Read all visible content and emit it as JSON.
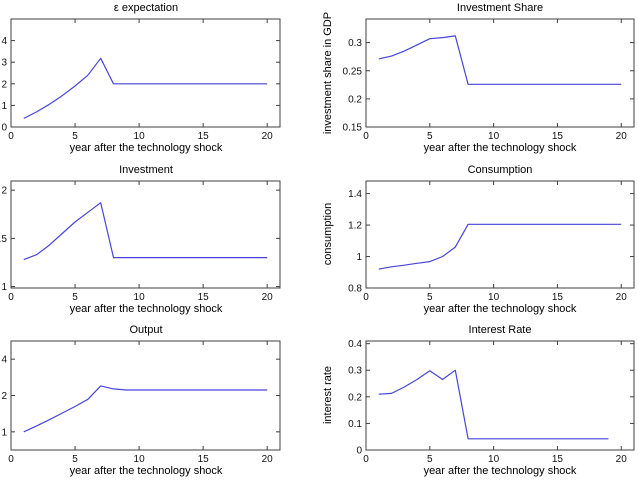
{
  "figure": {
    "background": "#ffffff",
    "line_color": "#4646d7",
    "flat_tail_color": "#b4b4ee",
    "axis_color": "#3f3f3f",
    "text_color": "#000000"
  },
  "chart_data": [
    {
      "type": "line",
      "title": "ε expectation",
      "xlabel": "year after the technology shock",
      "ylabel": "",
      "subplot": {
        "row": 0,
        "col": 0
      },
      "x": [
        1,
        2,
        3,
        4,
        5,
        6,
        7,
        8,
        9,
        10,
        11,
        12,
        13,
        14,
        15,
        16,
        17,
        18,
        19,
        20
      ],
      "y": [
        0.4,
        0.7,
        1.05,
        1.45,
        1.9,
        2.4,
        3.18,
        2.0,
        2.0,
        2.0,
        2.0,
        2.0,
        2.0,
        2.0,
        2.0,
        2.0,
        2.0,
        2.0,
        2.0,
        2.0
      ],
      "xlim": [
        0,
        21
      ],
      "ylim": [
        0,
        5
      ],
      "yscale": "linear",
      "xticks": {
        "values": [
          0,
          5,
          10,
          15,
          20
        ],
        "labels": [
          "0",
          "5",
          "10",
          "15",
          "20"
        ]
      },
      "yticks": {
        "values": [
          0,
          1,
          2,
          3,
          4
        ],
        "labels": [
          "0",
          "1",
          "2",
          "3",
          "4"
        ]
      },
      "grid": false,
      "legend": null
    },
    {
      "type": "line",
      "title": "Investment Share",
      "xlabel": "year after the technology shock",
      "ylabel": "investment share in GDP",
      "subplot": {
        "row": 0,
        "col": 1
      },
      "x": [
        1,
        2,
        3,
        4,
        5,
        6,
        7,
        8,
        9,
        10,
        11,
        12,
        13,
        14,
        15,
        16,
        17,
        18,
        19,
        20
      ],
      "y": [
        0.271,
        0.276,
        0.285,
        0.296,
        0.307,
        0.309,
        0.312,
        0.226,
        0.226,
        0.226,
        0.226,
        0.226,
        0.226,
        0.226,
        0.226,
        0.226,
        0.226,
        0.226,
        0.226,
        0.226
      ],
      "xlim": [
        0,
        21
      ],
      "ylim": [
        0.15,
        0.342
      ],
      "yscale": "linear",
      "xticks": {
        "values": [
          0,
          5,
          10,
          15,
          20
        ],
        "labels": [
          "0",
          "5",
          "10",
          "15",
          "20"
        ]
      },
      "yticks": {
        "values": [
          0.15,
          0.2,
          0.25,
          0.3
        ],
        "labels": [
          "0.15",
          "0.2",
          "0.25",
          "0.3"
        ]
      },
      "grid": false,
      "legend": null
    },
    {
      "type": "line",
      "title": "Investment",
      "xlabel": "year after the technology shock",
      "ylabel": "",
      "subplot": {
        "row": 1,
        "col": 0
      },
      "x": [
        1,
        2,
        3,
        4,
        5,
        6,
        7,
        8,
        9,
        10,
        11,
        12,
        13,
        14,
        15,
        16,
        17,
        18,
        19,
        20
      ],
      "y": [
        1.28,
        1.33,
        1.43,
        1.55,
        1.67,
        1.77,
        1.87,
        1.3,
        1.3,
        1.3,
        1.3,
        1.3,
        1.3,
        1.3,
        1.3,
        1.3,
        1.3,
        1.3,
        1.3,
        1.3
      ],
      "xlim": [
        0,
        21
      ],
      "ylim": [
        0.985,
        2.095
      ],
      "yscale": "linear",
      "xticks": {
        "values": [
          0,
          5,
          10,
          15,
          20
        ],
        "labels": [
          "0",
          "5",
          "10",
          "15",
          "20"
        ]
      },
      "yticks": {
        "values": [
          1,
          1.5,
          2
        ],
        "labels": [
          "1",
          "1.5",
          "2"
        ]
      },
      "grid": false,
      "legend": null
    },
    {
      "type": "line",
      "title": "Consumption",
      "xlabel": "year after the technology shock",
      "ylabel": "consumption",
      "subplot": {
        "row": 1,
        "col": 1
      },
      "x": [
        1,
        2,
        3,
        4,
        5,
        6,
        7,
        8,
        9,
        10,
        11,
        12,
        13,
        14,
        15,
        16,
        17,
        18,
        19,
        20
      ],
      "y": [
        0.92,
        0.935,
        0.945,
        0.957,
        0.968,
        1.0,
        1.06,
        1.205,
        1.205,
        1.205,
        1.205,
        1.205,
        1.205,
        1.205,
        1.205,
        1.205,
        1.205,
        1.205,
        1.205,
        1.205
      ],
      "xlim": [
        0,
        21
      ],
      "ylim": [
        0.8,
        1.48
      ],
      "yscale": "linear",
      "xticks": {
        "values": [
          0,
          5,
          10,
          15,
          20
        ],
        "labels": [
          "0",
          "5",
          "10",
          "15",
          "20"
        ]
      },
      "yticks": {
        "values": [
          0.8,
          1,
          1.2,
          1.4
        ],
        "labels": [
          "0.8",
          "1",
          "1.2",
          "1.4"
        ]
      },
      "grid": false,
      "legend": null
    },
    {
      "type": "line",
      "title": "Output",
      "xlabel": "year after the technology shock",
      "ylabel": "",
      "subplot": {
        "row": 2,
        "col": 0
      },
      "x": [
        1,
        2,
        3,
        4,
        5,
        6,
        7,
        8,
        9,
        10,
        11,
        12,
        13,
        14,
        15,
        16,
        17,
        18,
        19,
        20
      ],
      "y": [
        1.0,
        1.12,
        1.26,
        1.43,
        1.62,
        1.86,
        2.4,
        2.27,
        2.22,
        2.22,
        2.22,
        2.22,
        2.22,
        2.22,
        2.22,
        2.22,
        2.22,
        2.22,
        2.22,
        2.22
      ],
      "xlim": [
        0,
        21
      ],
      "ylim": [
        -0.5,
        2.5
      ],
      "ylim_units": "log2(value)",
      "yscale": "log2",
      "xticks": {
        "values": [
          0,
          5,
          10,
          15,
          20
        ],
        "labels": [
          "0",
          "5",
          "10",
          "15",
          "20"
        ]
      },
      "yticks": {
        "values": [
          1,
          2,
          4
        ],
        "labels": [
          "1",
          "2",
          "4"
        ]
      },
      "grid": false,
      "legend": null
    },
    {
      "type": "line",
      "title": "Interest Rate",
      "xlabel": "year after the technology shock",
      "ylabel": "interest rate",
      "subplot": {
        "row": 2,
        "col": 1
      },
      "x": [
        1,
        2,
        3,
        4,
        5,
        6,
        7,
        8,
        9,
        10,
        11,
        12,
        13,
        14,
        15,
        16,
        17,
        18,
        19
      ],
      "y": [
        0.21,
        0.213,
        0.237,
        0.265,
        0.298,
        0.265,
        0.3,
        0.042,
        0.042,
        0.042,
        0.042,
        0.042,
        0.042,
        0.042,
        0.042,
        0.042,
        0.042,
        0.042,
        0.042
      ],
      "xlim": [
        0,
        21
      ],
      "ylim": [
        0,
        0.41
      ],
      "yscale": "linear",
      "xticks": {
        "values": [
          0,
          5,
          10,
          15,
          20
        ],
        "labels": [
          "0",
          "5",
          "10",
          "15",
          "20"
        ]
      },
      "yticks": {
        "values": [
          0,
          0.1,
          0.2,
          0.3,
          0.4
        ],
        "labels": [
          "0",
          "0.1",
          "0.2",
          "0.3",
          "0.4"
        ]
      },
      "grid": false,
      "legend": null
    }
  ]
}
